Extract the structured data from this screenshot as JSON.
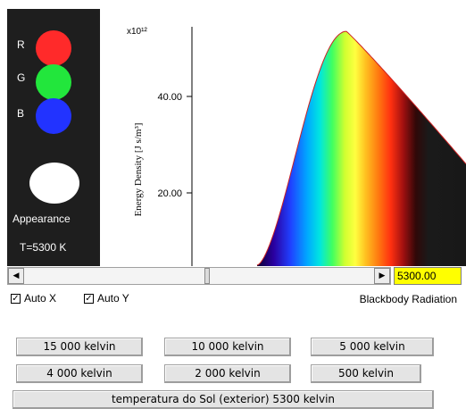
{
  "color_panel": {
    "r_label": "R",
    "g_label": "G",
    "b_label": "B",
    "r_color": "#ff2a2a",
    "g_color": "#22e63c",
    "b_color": "#2233ff",
    "appearance_color": "#ffffff",
    "appearance_label": "Appearance",
    "temperature_label": "T=5300 K"
  },
  "chart_data": {
    "type": "area",
    "title": "",
    "xlabel": "",
    "ylabel": "Energy Density [J s/m³]",
    "y_multiplier": "x10¹²",
    "y_ticks": [
      "20.00",
      "40.00"
    ],
    "ylim": [
      5,
      54
    ],
    "temperature_K": 5300,
    "peak_value": 53.5,
    "curve_color": "#cc2222",
    "grid": false,
    "fill": "visible spectrum gradient under curve, black beyond red"
  },
  "slider": {
    "left_arrow": "◀",
    "right_arrow": "▶",
    "value": "5300.00",
    "fraction": 0.52
  },
  "options": {
    "auto_x_label": "Auto X",
    "auto_x_checked": true,
    "auto_y_label": "Auto Y",
    "auto_y_checked": true,
    "check_mark": "✓",
    "title": "Blackbody Radiation"
  },
  "buttons": {
    "k15000": "15 000 kelvin",
    "k10000": "10 000 kelvin",
    "k5000": "5 000 kelvin",
    "k4000": "4 000 kelvin",
    "k2000": "2 000 kelvin",
    "k500": "500 kelvin",
    "sun": "temperatura do Sol (exterior) 5300 kelvin"
  }
}
